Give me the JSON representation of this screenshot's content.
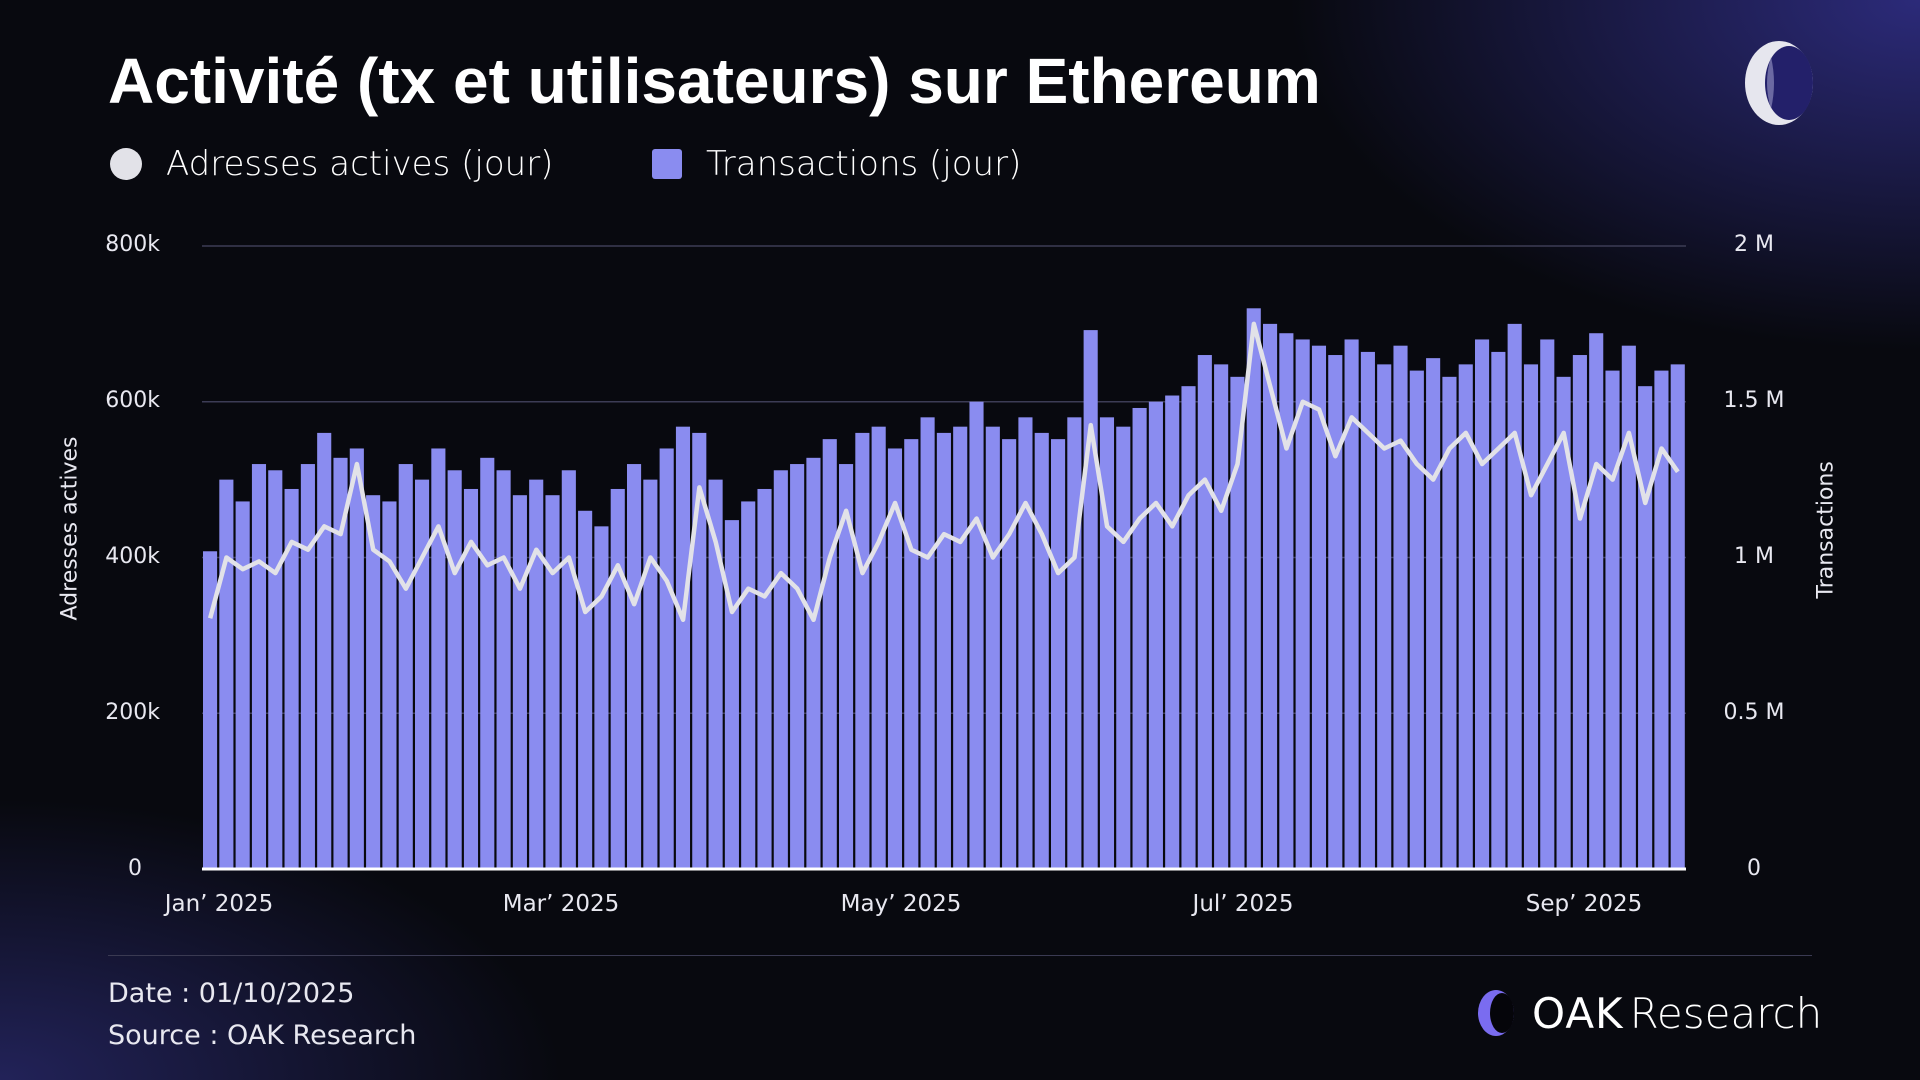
{
  "header": {
    "title": "Activité (tx et utilisateurs) sur Ethereum"
  },
  "legend": [
    {
      "label": "Adresses actives (jour)",
      "color": "#e2e2e8"
    },
    {
      "label": "Transactions (jour)",
      "color": "#8a8cf0"
    }
  ],
  "chart_data": {
    "type": "bar+line",
    "title": "Activité (tx et utilisateurs) sur Ethereum",
    "x_period": "2025-01-01 to 2025-09-30, sampled every 3 days",
    "xticks": [
      "Jan’ 2025",
      "Mar’ 2025",
      "May’ 2025",
      "Jul’ 2025",
      "Sep’ 2025"
    ],
    "y_left": {
      "label": "Adresses actives",
      "ticks": [
        "0",
        "200k",
        "400k",
        "600k",
        "800k"
      ],
      "range": [
        0,
        800000
      ]
    },
    "y_right": {
      "label": "Transactions",
      "ticks": [
        "0",
        "0.5 M",
        "1 M",
        "1.5 M",
        "2 M"
      ],
      "range": [
        0,
        2000000
      ]
    },
    "grid": true,
    "legend_position": "top-left",
    "series": [
      {
        "name": "Transactions (jour)",
        "type": "bar",
        "axis": "right",
        "color": "#8a8cf0",
        "unit": "M",
        "values": [
          1.02,
          1.25,
          1.18,
          1.3,
          1.28,
          1.22,
          1.3,
          1.4,
          1.32,
          1.35,
          1.2,
          1.18,
          1.3,
          1.25,
          1.35,
          1.28,
          1.22,
          1.32,
          1.28,
          1.2,
          1.25,
          1.2,
          1.28,
          1.15,
          1.1,
          1.22,
          1.3,
          1.25,
          1.35,
          1.42,
          1.4,
          1.25,
          1.12,
          1.18,
          1.22,
          1.28,
          1.3,
          1.32,
          1.38,
          1.3,
          1.4,
          1.42,
          1.35,
          1.38,
          1.45,
          1.4,
          1.42,
          1.5,
          1.42,
          1.38,
          1.45,
          1.4,
          1.38,
          1.45,
          1.73,
          1.45,
          1.42,
          1.48,
          1.5,
          1.52,
          1.55,
          1.65,
          1.62,
          1.58,
          1.8,
          1.75,
          1.72,
          1.7,
          1.68,
          1.65,
          1.7,
          1.66,
          1.62,
          1.68,
          1.6,
          1.64,
          1.58,
          1.62,
          1.7,
          1.66,
          1.75,
          1.62,
          1.7,
          1.58,
          1.65,
          1.72,
          1.6,
          1.68,
          1.55,
          1.6,
          1.62
        ]
      },
      {
        "name": "Adresses actives (jour)",
        "type": "line",
        "axis": "left",
        "color": "#e2e2e8",
        "unit": "k",
        "values": [
          322,
          400,
          385,
          395,
          380,
          420,
          410,
          440,
          430,
          520,
          410,
          395,
          360,
          400,
          440,
          380,
          420,
          390,
          400,
          360,
          410,
          380,
          400,
          330,
          350,
          390,
          340,
          400,
          370,
          320,
          490,
          420,
          330,
          360,
          350,
          380,
          360,
          320,
          400,
          460,
          380,
          420,
          470,
          410,
          400,
          430,
          420,
          450,
          400,
          430,
          470,
          430,
          380,
          400,
          570,
          440,
          420,
          450,
          470,
          440,
          480,
          500,
          460,
          520,
          700,
          620,
          540,
          600,
          590,
          530,
          580,
          560,
          540,
          550,
          520,
          500,
          540,
          560,
          520,
          540,
          560,
          480,
          520,
          560,
          450,
          520,
          500,
          560,
          470,
          540,
          510
        ]
      }
    ]
  },
  "footer": {
    "date": "Date : 01/10/2025",
    "source": "Source : OAK Research",
    "brand_oak": "OAK",
    "brand_research": "Research"
  }
}
